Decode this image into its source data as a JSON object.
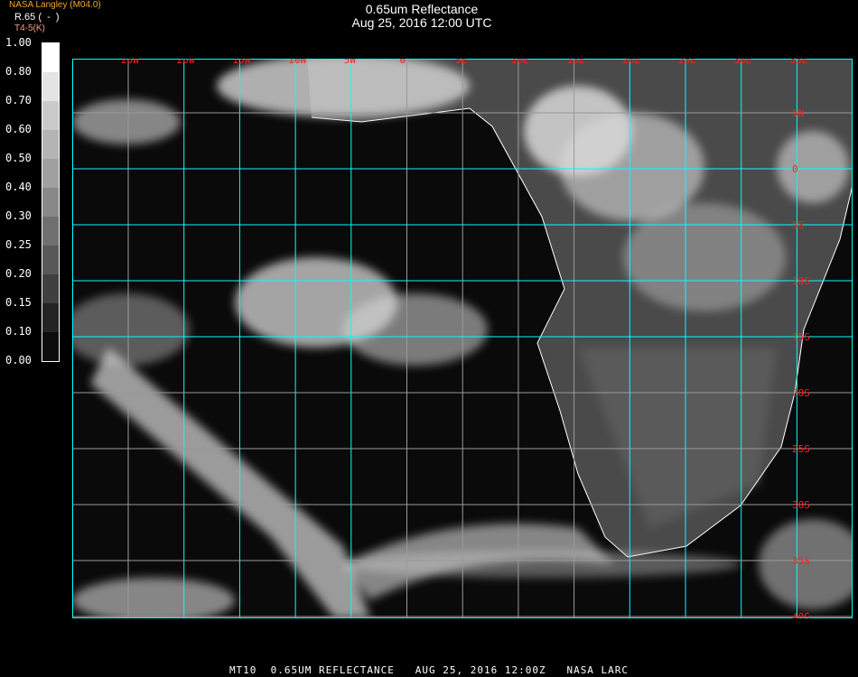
{
  "header": {
    "title": "0.65um Reflectance",
    "subtitle": "Aug 25, 2016 12:00 UTC",
    "credit": "NASA Langley (M04.0)"
  },
  "legend": {
    "unit": "R.65",
    "unit_paren": "(  -  )",
    "secondary": "T4-5(K)",
    "ticks": [
      "1.00",
      "0.80",
      "0.70",
      "0.60",
      "0.50",
      "0.40",
      "0.30",
      "0.25",
      "0.20",
      "0.15",
      "0.10",
      "0.00"
    ],
    "colors": [
      "#ffffff",
      "#e4e4e4",
      "#cacaca",
      "#b4b4b4",
      "#a0a0a0",
      "#888888",
      "#707070",
      "#585858",
      "#404040",
      "#242424",
      "#0c0c0c"
    ]
  },
  "map": {
    "lon_labels": [
      "25W",
      "20W",
      "15W",
      "10W",
      "5W",
      "0",
      "5E",
      "10E",
      "15E",
      "20E",
      "25E",
      "30E",
      "35E"
    ],
    "lat_labels": [
      "5N",
      "0",
      "5S",
      "10S",
      "15S",
      "20S",
      "25S",
      "30S",
      "35S",
      "40S"
    ],
    "grid_color": "#00ffff",
    "coast_color": "#ffffff",
    "label_color": "#ff2020"
  },
  "footer": {
    "text": "MT10  0.65UM REFLECTANCE   AUG 25, 2016 12:00Z   NASA LARC"
  }
}
